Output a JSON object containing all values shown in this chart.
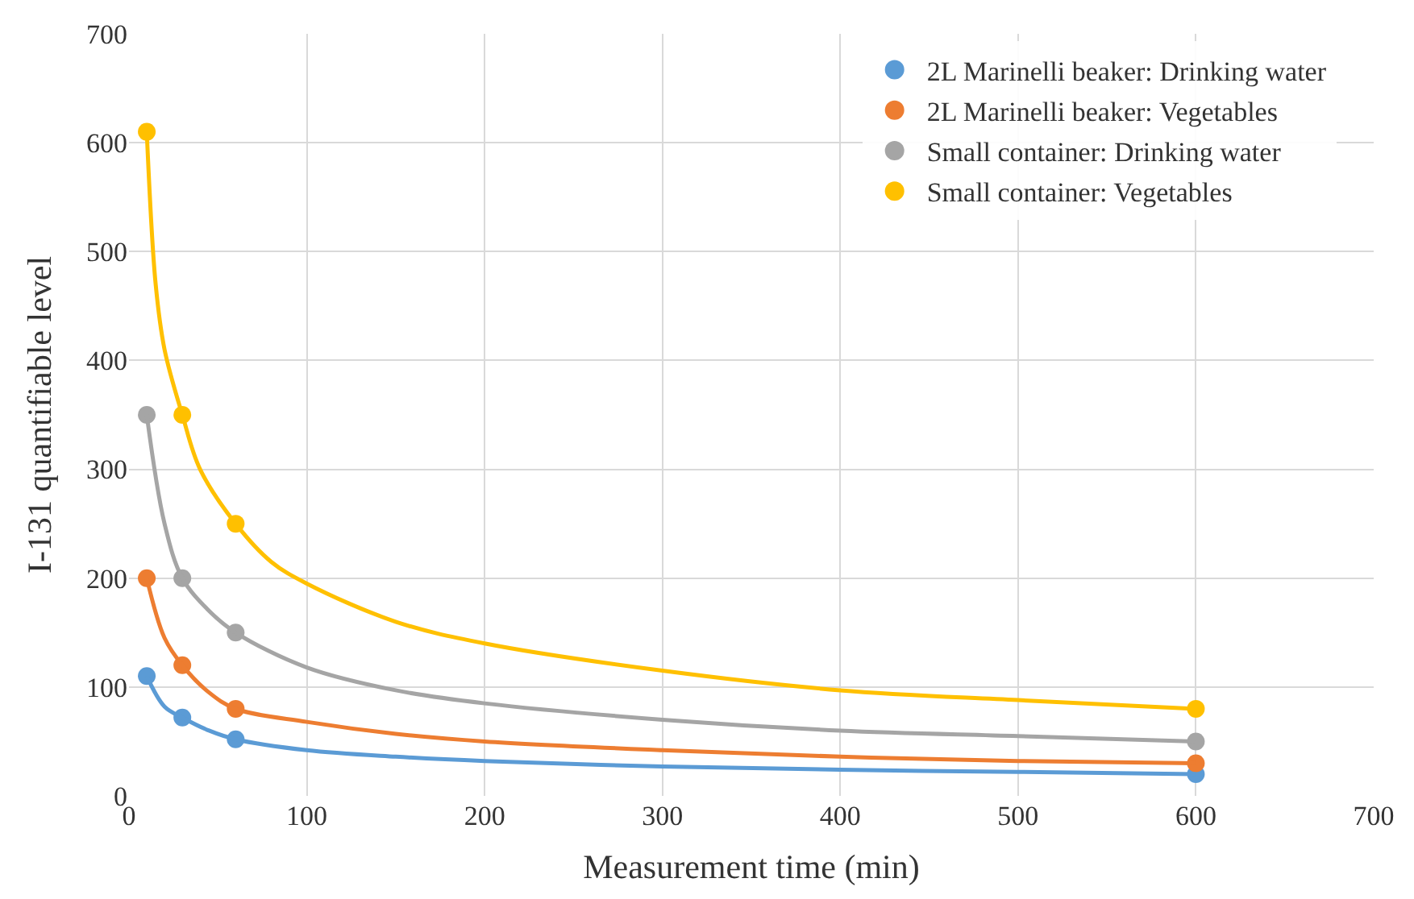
{
  "chart_data": {
    "type": "scatter",
    "xlabel": "Measurement time (min)",
    "ylabel": "I-131 quantifiable level",
    "xlim": [
      0,
      700
    ],
    "ylim": [
      0,
      700
    ],
    "xticks": [
      0,
      100,
      200,
      300,
      400,
      500,
      600,
      700
    ],
    "yticks": [
      0,
      100,
      200,
      300,
      400,
      500,
      600,
      700
    ],
    "grid": true,
    "legend": "top right",
    "marker": "circle",
    "series": [
      {
        "name": "2L Marinelli beaker: Drinking water",
        "color": "#5b9bd5",
        "x": [
          10,
          30,
          60,
          600
        ],
        "values": [
          110,
          72,
          52,
          20
        ]
      },
      {
        "name": "2L Marinelli beaker: Vegetables",
        "color": "#ed7d31",
        "x": [
          10,
          30,
          60,
          600
        ],
        "values": [
          200,
          120,
          80,
          30
        ]
      },
      {
        "name": "Small container: Drinking water",
        "color": "#a5a5a5",
        "x": [
          10,
          30,
          60,
          600
        ],
        "values": [
          350,
          200,
          150,
          50
        ]
      },
      {
        "name": "Small container: Vegetables",
        "color": "#ffc000",
        "x": [
          10,
          30,
          60,
          600
        ],
        "values": [
          610,
          350,
          250,
          80
        ]
      },
      {
        "color": "#5b9bd5",
        "type": "line",
        "marker": "none",
        "x": [
          10,
          20,
          30,
          45,
          60,
          100,
          150,
          200,
          300,
          400,
          500,
          600
        ],
        "values": [
          110,
          82,
          72,
          60,
          52,
          42,
          36,
          32,
          27,
          24,
          22,
          20
        ]
      },
      {
        "color": "#ed7d31",
        "type": "line",
        "marker": "none",
        "x": [
          10,
          20,
          30,
          45,
          60,
          100,
          150,
          200,
          300,
          400,
          500,
          600
        ],
        "values": [
          200,
          145,
          120,
          95,
          80,
          68,
          57,
          50,
          42,
          36,
          32,
          30
        ]
      },
      {
        "color": "#a5a5a5",
        "type": "line",
        "marker": "none",
        "x": [
          10,
          20,
          30,
          45,
          60,
          100,
          150,
          200,
          300,
          400,
          500,
          600
        ],
        "values": [
          350,
          250,
          200,
          170,
          150,
          118,
          97,
          85,
          70,
          60,
          55,
          50
        ]
      },
      {
        "color": "#ffc000",
        "type": "line",
        "marker": "none",
        "x": [
          10,
          15,
          20,
          30,
          40,
          60,
          80,
          100,
          150,
          200,
          300,
          400,
          500,
          600
        ],
        "values": [
          610,
          470,
          410,
          350,
          300,
          250,
          215,
          195,
          160,
          140,
          115,
          97,
          88,
          80
        ]
      }
    ]
  }
}
